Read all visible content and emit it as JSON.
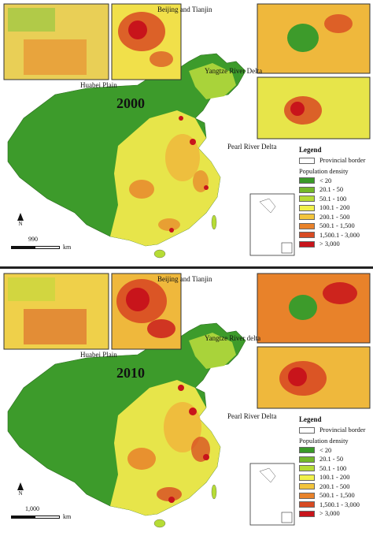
{
  "panels": [
    {
      "year": "2000",
      "scale_label": "990",
      "scale_unit": "km"
    },
    {
      "year": "2010",
      "scale_label": "1,000",
      "scale_unit": "km"
    }
  ],
  "insets": {
    "huabei": "Huabei Plain",
    "beijing": "Beijing and Tianjin",
    "yangtze_top": "Yangtze River Delta",
    "yangtze_bottom": "Yangtze River delta",
    "pearl": "Pearl River Delta"
  },
  "north_label": "N",
  "legend": {
    "title": "Legend",
    "border_label": "Provincial border",
    "density_label": "Population density",
    "classes": [
      {
        "label": "< 20",
        "color": "#3a9a27"
      },
      {
        "label": "20.1 - 50",
        "color": "#73b829"
      },
      {
        "label": "50.1 - 100",
        "color": "#b6dc35"
      },
      {
        "label": "100.1 - 200",
        "color": "#f1f14a"
      },
      {
        "label": "200.1 - 500",
        "color": "#f2c43c"
      },
      {
        "label": "500.1 - 1,500",
        "color": "#e8822a"
      },
      {
        "label": "1,500.1 - 3,000",
        "color": "#d84a22"
      },
      {
        "label": "> 3,000",
        "color": "#c8141b"
      }
    ]
  }
}
